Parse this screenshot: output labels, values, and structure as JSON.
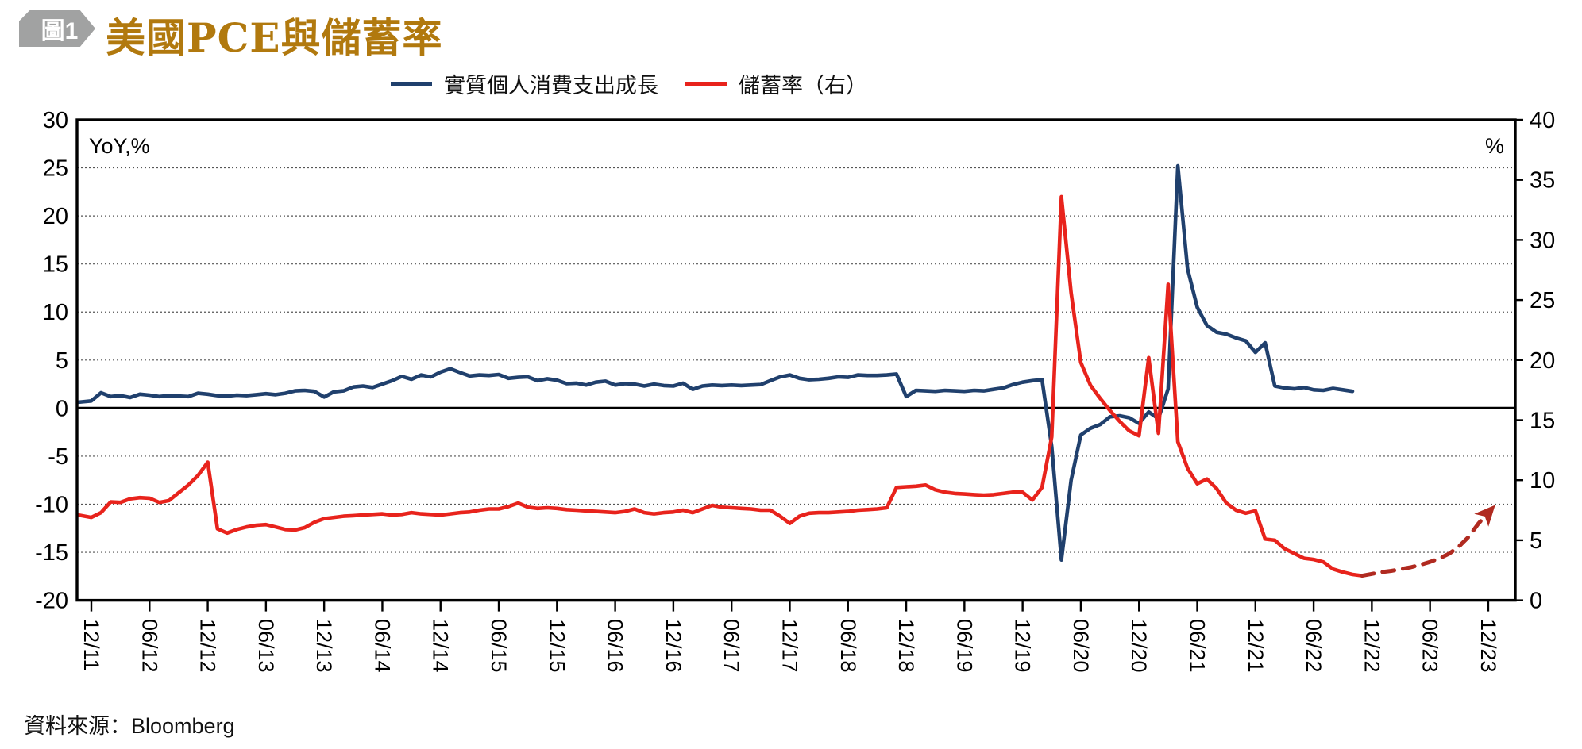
{
  "header": {
    "badge": "圖1",
    "title": "美國PCE與儲蓄率"
  },
  "legend": [
    {
      "label": "實質個人消費支出成長",
      "color": "#20406d",
      "style": "solid"
    },
    {
      "label": "儲蓄率（右）",
      "color": "#e8231c",
      "style": "solid"
    }
  ],
  "footer": {
    "source_label": "資料來源：Bloomberg"
  },
  "colors": {
    "title": "#b1790e",
    "badge": "#a1a2a2",
    "pce_line": "#20406d",
    "savings_line": "#e8231c",
    "forecast_dashed": "#b02a20",
    "axis": "#000000",
    "gridline": "#555555"
  },
  "chart_data": {
    "type": "line",
    "title": "美國PCE與儲蓄率",
    "grid": "horizontal-dotted",
    "zero_line_left_value": 0,
    "left_axis": {
      "label": "YoY,%",
      "min": -20,
      "max": 30,
      "ticks": [
        30,
        25,
        20,
        15,
        10,
        5,
        0,
        -5,
        -10,
        -15,
        -20
      ]
    },
    "right_axis": {
      "label": "%",
      "min": 0,
      "max": 40,
      "ticks": [
        40,
        35,
        30,
        25,
        20,
        15,
        10,
        5,
        0
      ]
    },
    "x_axis": {
      "months_per_tick": 6,
      "tick_labels": [
        "12/11",
        "06/12",
        "12/12",
        "06/13",
        "12/13",
        "06/14",
        "12/14",
        "06/15",
        "12/15",
        "06/16",
        "12/16",
        "06/17",
        "12/17",
        "06/18",
        "12/18",
        "06/19",
        "12/19",
        "06/20",
        "12/20",
        "06/21",
        "12/21",
        "06/22",
        "12/22",
        "06/23",
        "12/23"
      ]
    },
    "series": [
      {
        "id": "pce-growth",
        "name": "實質個人消費支出成長",
        "axis": "left",
        "color": "#20406d",
        "dash": false,
        "arrow_end": false,
        "start_month_index": -2,
        "monthly_values": [
          0.55,
          0.65,
          0.75,
          1.6,
          1.2,
          1.3,
          1.1,
          1.45,
          1.35,
          1.2,
          1.3,
          1.25,
          1.2,
          1.55,
          1.45,
          1.3,
          1.25,
          1.35,
          1.3,
          1.4,
          1.5,
          1.4,
          1.55,
          1.8,
          1.85,
          1.75,
          1.15,
          1.7,
          1.8,
          2.2,
          2.3,
          2.15,
          2.5,
          2.85,
          3.3,
          3.0,
          3.45,
          3.25,
          3.75,
          4.1,
          3.7,
          3.35,
          3.45,
          3.4,
          3.5,
          3.1,
          3.2,
          3.25,
          2.85,
          3.05,
          2.9,
          2.55,
          2.6,
          2.4,
          2.7,
          2.8,
          2.4,
          2.55,
          2.5,
          2.3,
          2.5,
          2.35,
          2.3,
          2.6,
          1.95,
          2.3,
          2.4,
          2.35,
          2.4,
          2.35,
          2.4,
          2.45,
          2.85,
          3.25,
          3.45,
          3.1,
          2.95,
          3.0,
          3.1,
          3.25,
          3.2,
          3.45,
          3.4,
          3.4,
          3.45,
          3.55,
          1.2,
          1.85,
          1.8,
          1.75,
          1.85,
          1.8,
          1.75,
          1.85,
          1.8,
          1.95,
          2.1,
          2.45,
          2.7,
          2.85,
          2.95,
          -4.0,
          -15.8,
          -7.5,
          -2.8,
          -2.1,
          -1.7,
          -0.9,
          -0.8,
          -1.0,
          -1.6,
          -0.4,
          -1.1,
          2.0,
          25.2,
          14.5,
          10.5,
          8.6,
          7.9,
          7.7,
          7.3,
          7.0,
          5.8,
          6.8,
          2.3,
          2.1,
          2.0,
          2.15,
          1.9,
          1.85,
          2.05,
          1.9,
          1.75
        ]
      },
      {
        "id": "savings-rate",
        "name": "儲蓄率（右）",
        "axis": "right",
        "color": "#e8231c",
        "dash": false,
        "arrow_end": false,
        "start_month_index": -2,
        "monthly_values": [
          7.2,
          7.05,
          6.9,
          7.3,
          8.2,
          8.15,
          8.45,
          8.55,
          8.5,
          8.15,
          8.3,
          8.95,
          9.6,
          10.4,
          11.5,
          5.95,
          5.6,
          5.9,
          6.1,
          6.25,
          6.3,
          6.1,
          5.9,
          5.85,
          6.05,
          6.5,
          6.8,
          6.9,
          7.0,
          7.05,
          7.1,
          7.15,
          7.2,
          7.1,
          7.15,
          7.3,
          7.2,
          7.15,
          7.1,
          7.2,
          7.3,
          7.35,
          7.5,
          7.6,
          7.6,
          7.8,
          8.1,
          7.75,
          7.65,
          7.7,
          7.65,
          7.55,
          7.5,
          7.45,
          7.4,
          7.35,
          7.3,
          7.4,
          7.6,
          7.3,
          7.2,
          7.3,
          7.35,
          7.5,
          7.3,
          7.6,
          7.9,
          7.75,
          7.7,
          7.65,
          7.6,
          7.5,
          7.5,
          7.0,
          6.4,
          7.0,
          7.25,
          7.3,
          7.3,
          7.35,
          7.4,
          7.5,
          7.55,
          7.6,
          7.7,
          9.4,
          9.45,
          9.5,
          9.6,
          9.2,
          9.0,
          8.9,
          8.85,
          8.8,
          8.75,
          8.8,
          8.9,
          9.0,
          9.0,
          8.35,
          9.4,
          13.6,
          33.6,
          25.6,
          19.8,
          17.9,
          16.8,
          15.8,
          14.9,
          14.1,
          13.7,
          20.2,
          13.9,
          26.3,
          13.2,
          11.0,
          9.7,
          10.1,
          9.3,
          8.1,
          7.5,
          7.25,
          7.45,
          5.1,
          5.0,
          4.3,
          3.9,
          3.5,
          3.4,
          3.2,
          2.6,
          2.35,
          2.15,
          2.05
        ]
      },
      {
        "id": "savings-rate-dashed-segment",
        "axis": "right",
        "color": "#b02a20",
        "dash": true,
        "arrow_end": true,
        "start_month_index": 131,
        "monthly_values": [
          2.05,
          2.2,
          2.35,
          2.45,
          2.6,
          2.75,
          2.95,
          3.2,
          3.5,
          3.9,
          4.5,
          5.3,
          6.4,
          7.3
        ]
      }
    ]
  }
}
